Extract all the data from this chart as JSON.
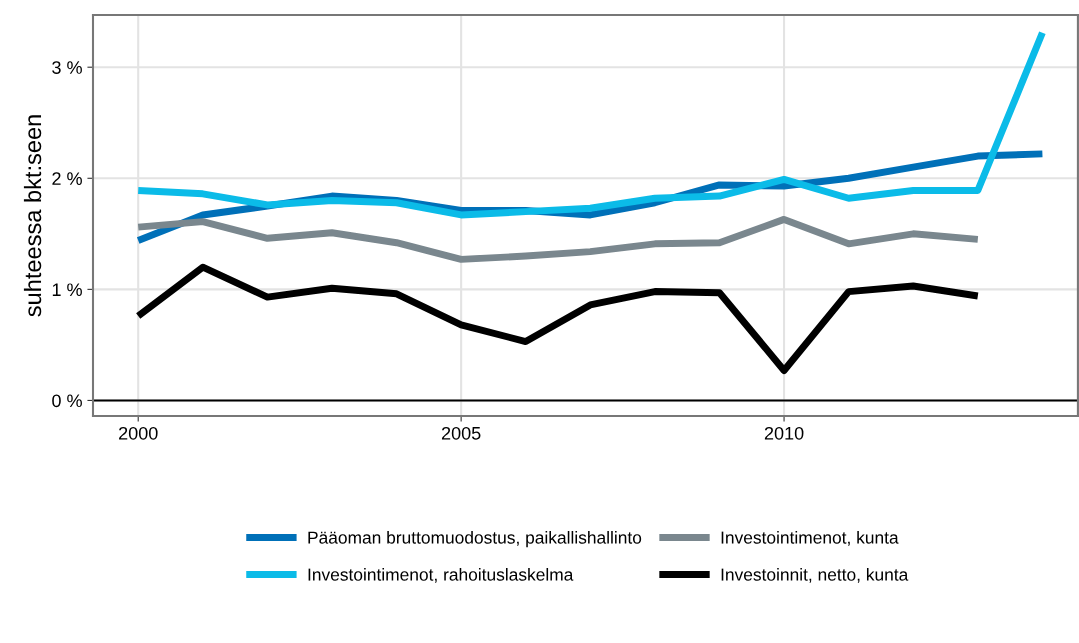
{
  "chart_data": {
    "type": "line",
    "ylabel": "suhteessa bkt:seen",
    "x": [
      2000,
      2001,
      2002,
      2003,
      2004,
      2005,
      2006,
      2007,
      2008,
      2009,
      2010,
      2011,
      2012,
      2013,
      2014
    ],
    "xlim": [
      1999.3,
      2014.55
    ],
    "xticks": [
      2000,
      2005,
      2010
    ],
    "ylim": [
      -0.14,
      3.47
    ],
    "yticks": [
      {
        "value": 0,
        "label": "0 %"
      },
      {
        "value": 1,
        "label": "1 %"
      },
      {
        "value": 2,
        "label": "2 %"
      },
      {
        "value": 3,
        "label": "3 %"
      }
    ],
    "grid": true,
    "legend": "bottom",
    "line_style": "solid",
    "ref_lines": [
      {
        "axis": "y",
        "value": 0,
        "color": "#000000"
      }
    ],
    "series": [
      {
        "name": "Pääoman bruttomuodostus, paikallishallinto",
        "color": "#0070b8",
        "values": [
          1.44,
          1.67,
          1.75,
          1.84,
          1.8,
          1.71,
          1.71,
          1.67,
          1.78,
          1.94,
          1.93,
          2.0,
          2.1,
          2.2,
          2.22
        ]
      },
      {
        "name": "Investointimenot, rahoituslaskelma",
        "color": "#0bbbe8",
        "values": [
          1.89,
          1.86,
          1.76,
          1.8,
          1.78,
          1.67,
          1.7,
          1.73,
          1.82,
          1.84,
          1.99,
          1.82,
          1.89,
          1.89,
          3.31
        ]
      },
      {
        "name": "Investointimenot, kunta",
        "color": "#7a878e",
        "values": [
          1.56,
          1.61,
          1.46,
          1.51,
          1.42,
          1.27,
          1.3,
          1.34,
          1.41,
          1.42,
          1.63,
          1.41,
          1.5,
          1.45,
          null
        ]
      },
      {
        "name": "Investoinnit, netto, kunta",
        "color": "#000000",
        "values": [
          0.76,
          1.2,
          0.93,
          1.01,
          0.96,
          0.68,
          0.53,
          0.86,
          0.98,
          0.97,
          0.27,
          0.98,
          1.03,
          0.94,
          null
        ]
      }
    ]
  }
}
